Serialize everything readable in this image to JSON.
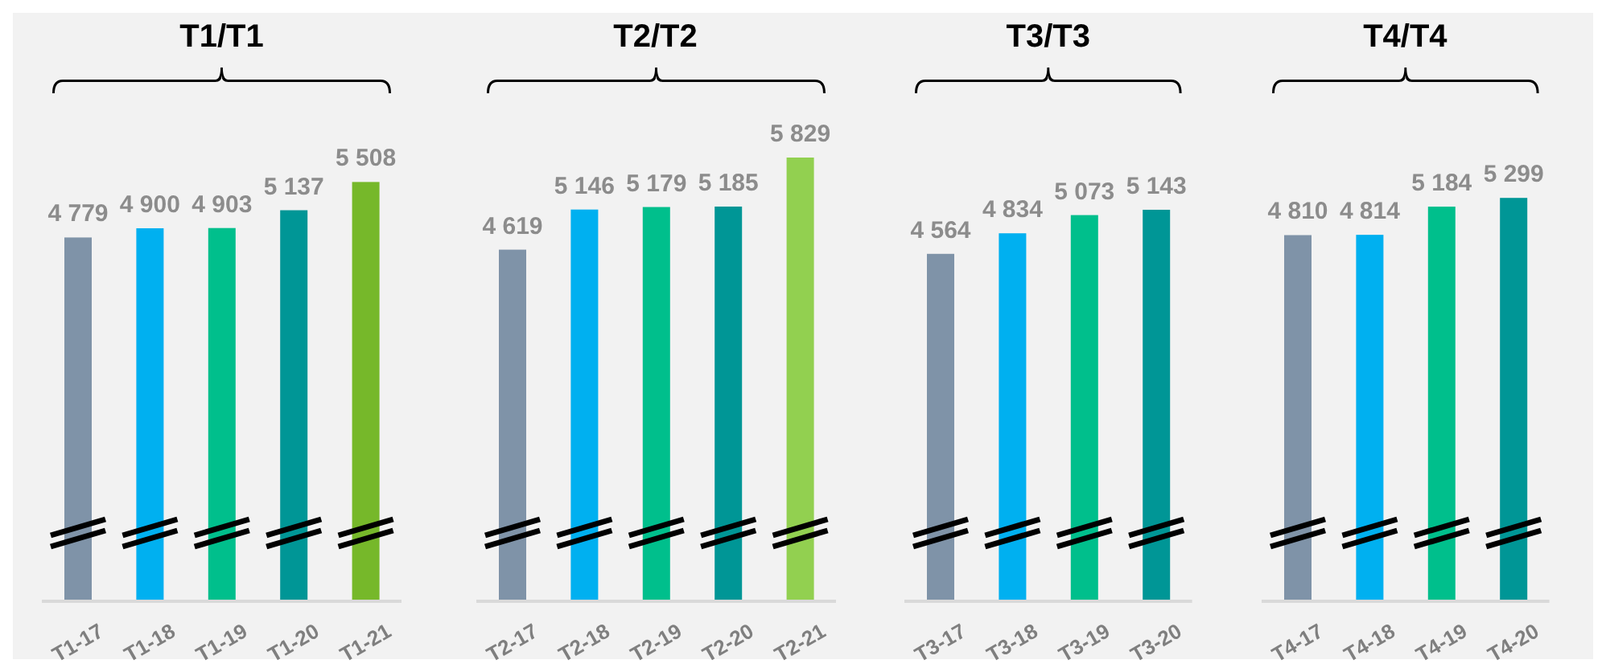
{
  "chart_data": [
    {
      "type": "bar",
      "title": "T1/T1",
      "categories": [
        "T1-17",
        "T1-18",
        "T1-19",
        "T1-20",
        "T1-21"
      ],
      "values": [
        4779,
        4900,
        4903,
        5137,
        5508
      ],
      "value_labels": [
        "4 779",
        "4 900",
        "4 903",
        "5 137",
        "5 508"
      ],
      "colors": [
        "#7f93a8",
        "#00b0f0",
        "#00bf8c",
        "#009696",
        "#76b82a"
      ],
      "tick_labels": "x"
    },
    {
      "type": "bar",
      "title": "T2/T2",
      "categories": [
        "T2-17",
        "T2-18",
        "T2-19",
        "T2-20",
        "T2-21"
      ],
      "values": [
        4619,
        5146,
        5179,
        5185,
        5829
      ],
      "value_labels": [
        "4 619",
        "5 146",
        "5 179",
        "5 185",
        "5 829"
      ],
      "colors": [
        "#7f93a8",
        "#00b0f0",
        "#00bf8c",
        "#009696",
        "#92d050"
      ],
      "tick_labels": "x"
    },
    {
      "type": "bar",
      "title": "T3/T3",
      "categories": [
        "T3-17",
        "T3-18",
        "T3-19",
        "T3-20"
      ],
      "values": [
        4564,
        4834,
        5073,
        5143
      ],
      "value_labels": [
        "4 564",
        "4 834",
        "5 073",
        "5 143"
      ],
      "colors": [
        "#7f93a8",
        "#00b0f0",
        "#00bf8c",
        "#009696"
      ],
      "tick_labels": "x"
    },
    {
      "type": "bar",
      "title": "T4/T4",
      "categories": [
        "T4-17",
        "T4-18",
        "T4-19",
        "T4-20"
      ],
      "values": [
        4810,
        4814,
        5184,
        5299
      ],
      "value_labels": [
        "4 810",
        "4 814",
        "5 184",
        "5 299"
      ],
      "colors": [
        "#7f93a8",
        "#00b0f0",
        "#00bf8c",
        "#009696"
      ],
      "tick_labels": "x"
    }
  ]
}
